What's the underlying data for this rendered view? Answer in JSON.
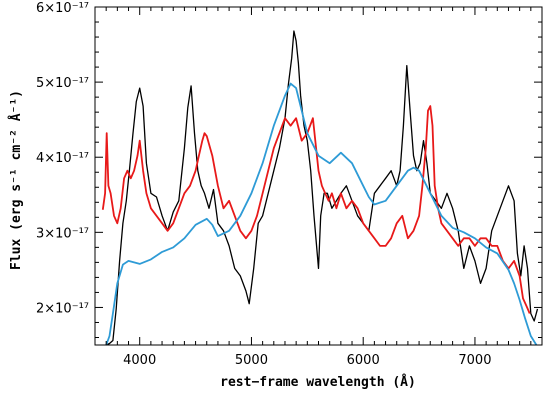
{
  "chart_data": {
    "type": "line",
    "title": "",
    "xlabel": "rest−frame wavelength (Å)",
    "ylabel": "Flux (erg s⁻¹ cm⁻² Å⁻¹)",
    "xlim": [
      3600,
      7600
    ],
    "ylim": [
      1.5e-17,
      6e-17
    ],
    "x_ticks": [
      4000,
      5000,
      6000,
      7000
    ],
    "x_tick_labels": [
      "4000",
      "5000",
      "6000",
      "7000"
    ],
    "y_ticks": [
      2e-17,
      3e-17,
      4e-17,
      5e-17,
      6e-17
    ],
    "y_tick_labels": [
      "2×10⁻¹⁷",
      "3×10⁻¹⁷",
      "4×10⁻¹⁷",
      "5×10⁻¹⁷",
      "6×10⁻¹⁷"
    ],
    "grid": false,
    "legend": "none",
    "series": [
      {
        "color": "#000000",
        "x": [
          3700,
          3730,
          3760,
          3790,
          3820,
          3850,
          3880,
          3910,
          3940,
          3970,
          4000,
          4030,
          4060,
          4100,
          4150,
          4200,
          4250,
          4300,
          4350,
          4400,
          4430,
          4460,
          4490,
          4520,
          4550,
          4580,
          4620,
          4660,
          4700,
          4750,
          4800,
          4850,
          4900,
          4950,
          4980,
          5020,
          5060,
          5100,
          5150,
          5200,
          5250,
          5300,
          5330,
          5360,
          5380,
          5400,
          5420,
          5440,
          5470,
          5500,
          5530,
          5560,
          5600,
          5620,
          5650,
          5680,
          5720,
          5760,
          5800,
          5850,
          5900,
          5950,
          6000,
          6050,
          6100,
          6150,
          6200,
          6250,
          6300,
          6330,
          6360,
          6390,
          6420,
          6450,
          6480,
          6510,
          6540,
          6570,
          6600,
          6650,
          6700,
          6750,
          6800,
          6850,
          6900,
          6950,
          7000,
          7050,
          7100,
          7150,
          7200,
          7250,
          7300,
          7350,
          7380,
          7410,
          7440,
          7470,
          7500,
          7530,
          7560
        ],
        "y": [
          1.5e-17,
          1.52e-17,
          1.56e-17,
          1.98e-17,
          2.62e-17,
          3.12e-17,
          3.42e-17,
          3.85e-17,
          4.32e-17,
          4.74e-17,
          4.92e-17,
          4.68e-17,
          3.92e-17,
          3.52e-17,
          3.47e-17,
          3.22e-17,
          3.02e-17,
          3.27e-17,
          3.42e-17,
          4.12e-17,
          4.66e-17,
          4.95e-17,
          4.32e-17,
          3.82e-17,
          3.62e-17,
          3.52e-17,
          3.32e-17,
          3.57e-17,
          3.12e-17,
          3.02e-17,
          2.82e-17,
          2.52e-17,
          2.42e-17,
          2.22e-17,
          2.05e-17,
          2.52e-17,
          3.12e-17,
          3.22e-17,
          3.52e-17,
          3.82e-17,
          4.12e-17,
          4.52e-17,
          4.96e-17,
          5.32e-17,
          5.68e-17,
          5.55e-17,
          5.25e-17,
          4.82e-17,
          4.42e-17,
          4.22e-17,
          3.82e-17,
          3.22e-17,
          2.52e-17,
          3.22e-17,
          3.52e-17,
          3.52e-17,
          3.32e-17,
          3.42e-17,
          3.52e-17,
          3.62e-17,
          3.42e-17,
          3.22e-17,
          3.12e-17,
          3.02e-17,
          3.52e-17,
          3.62e-17,
          3.72e-17,
          3.82e-17,
          3.62e-17,
          3.82e-17,
          4.42e-17,
          5.22e-17,
          4.62e-17,
          4.02e-17,
          3.82e-17,
          3.92e-17,
          4.22e-17,
          3.92e-17,
          3.52e-17,
          3.42e-17,
          3.32e-17,
          3.52e-17,
          3.32e-17,
          3.02e-17,
          2.52e-17,
          2.82e-17,
          2.62e-17,
          2.32e-17,
          2.52e-17,
          3.02e-17,
          3.22e-17,
          3.42e-17,
          3.62e-17,
          3.42e-17,
          2.72e-17,
          2.42e-17,
          2.82e-17,
          2.52e-17,
          1.92e-17,
          1.82e-17,
          1.98e-17
        ]
      },
      {
        "color": "#e81919",
        "x": [
          3670,
          3690,
          3705,
          3720,
          3740,
          3770,
          3800,
          3830,
          3860,
          3890,
          3920,
          3950,
          3980,
          4000,
          4030,
          4060,
          4100,
          4150,
          4200,
          4250,
          4300,
          4350,
          4400,
          4450,
          4500,
          4530,
          4560,
          4580,
          4600,
          4650,
          4700,
          4750,
          4800,
          4850,
          4900,
          4950,
          5000,
          5050,
          5100,
          5150,
          5200,
          5250,
          5300,
          5350,
          5400,
          5450,
          5500,
          5550,
          5600,
          5630,
          5660,
          5690,
          5720,
          5760,
          5800,
          5850,
          5900,
          5950,
          6000,
          6050,
          6100,
          6150,
          6200,
          6250,
          6300,
          6350,
          6400,
          6450,
          6500,
          6530,
          6560,
          6580,
          6600,
          6620,
          6640,
          6670,
          6700,
          6750,
          6800,
          6850,
          6900,
          6950,
          7000,
          7050,
          7100,
          7150,
          7200,
          7250,
          7300,
          7350,
          7400,
          7430,
          7460,
          7490
        ],
        "y": [
          3.3e-17,
          3.52e-17,
          4.32e-17,
          3.62e-17,
          3.52e-17,
          3.22e-17,
          3.12e-17,
          3.32e-17,
          3.72e-17,
          3.82e-17,
          3.72e-17,
          3.82e-17,
          4.02e-17,
          4.22e-17,
          3.82e-17,
          3.52e-17,
          3.32e-17,
          3.22e-17,
          3.12e-17,
          3.02e-17,
          3.12e-17,
          3.32e-17,
          3.52e-17,
          3.62e-17,
          3.82e-17,
          4.02e-17,
          4.22e-17,
          4.32e-17,
          4.28e-17,
          4.02e-17,
          3.62e-17,
          3.32e-17,
          3.42e-17,
          3.22e-17,
          3.02e-17,
          2.92e-17,
          3.02e-17,
          3.22e-17,
          3.52e-17,
          3.82e-17,
          4.12e-17,
          4.32e-17,
          4.52e-17,
          4.42e-17,
          4.52e-17,
          4.22e-17,
          4.32e-17,
          4.52e-17,
          3.82e-17,
          3.62e-17,
          3.52e-17,
          3.42e-17,
          3.52e-17,
          3.32e-17,
          3.52e-17,
          3.32e-17,
          3.42e-17,
          3.32e-17,
          3.12e-17,
          3.02e-17,
          2.92e-17,
          2.82e-17,
          2.82e-17,
          2.92e-17,
          3.12e-17,
          3.22e-17,
          2.92e-17,
          3.02e-17,
          3.22e-17,
          3.62e-17,
          4.12e-17,
          4.62e-17,
          4.68e-17,
          4.42e-17,
          3.62e-17,
          3.32e-17,
          3.12e-17,
          3.02e-17,
          2.92e-17,
          2.82e-17,
          2.92e-17,
          2.92e-17,
          2.82e-17,
          2.92e-17,
          2.92e-17,
          2.82e-17,
          2.82e-17,
          2.62e-17,
          2.52e-17,
          2.62e-17,
          2.42e-17,
          2.12e-17,
          2.02e-17,
          1.92e-17
        ]
      },
      {
        "color": "#2e9bd6",
        "x": [
          3700,
          3730,
          3760,
          3800,
          3850,
          3900,
          3950,
          4000,
          4100,
          4200,
          4300,
          4400,
          4500,
          4600,
          4650,
          4700,
          4800,
          4900,
          5000,
          5100,
          5200,
          5300,
          5350,
          5400,
          5450,
          5500,
          5600,
          5700,
          5800,
          5900,
          6000,
          6050,
          6100,
          6200,
          6300,
          6400,
          6450,
          6500,
          6600,
          6700,
          6800,
          6900,
          7000,
          7100,
          7200,
          7300,
          7350,
          7400,
          7450,
          7500,
          7550
        ],
        "y": [
          1.5e-17,
          1.62e-17,
          1.92e-17,
          2.32e-17,
          2.57e-17,
          2.62e-17,
          2.6e-17,
          2.58e-17,
          2.64e-17,
          2.74e-17,
          2.8e-17,
          2.92e-17,
          3.1e-17,
          3.18e-17,
          3.1e-17,
          2.95e-17,
          3.02e-17,
          3.22e-17,
          3.52e-17,
          3.92e-17,
          4.42e-17,
          4.82e-17,
          4.98e-17,
          4.92e-17,
          4.62e-17,
          4.32e-17,
          4.02e-17,
          3.92e-17,
          4.06e-17,
          3.92e-17,
          3.62e-17,
          3.47e-17,
          3.37e-17,
          3.42e-17,
          3.62e-17,
          3.82e-17,
          3.86e-17,
          3.82e-17,
          3.52e-17,
          3.22e-17,
          3.06e-17,
          3e-17,
          2.92e-17,
          2.8e-17,
          2.72e-17,
          2.5e-17,
          2.32e-17,
          2.1e-17,
          1.85e-17,
          1.62e-17,
          1.5e-17
        ]
      }
    ]
  }
}
